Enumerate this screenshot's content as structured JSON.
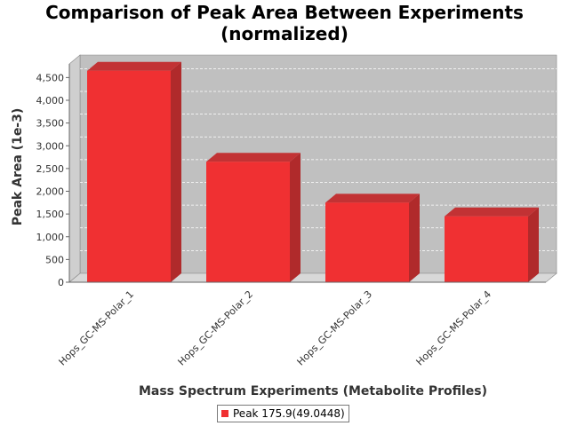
{
  "chart_data": {
    "type": "bar",
    "title": "Comparison of Peak Area Between Experiments\n(normalized)",
    "xlabel": "Mass Spectrum Experiments (Metabolite Profiles)",
    "ylabel": "Peak Area (1e-3)",
    "categories": [
      "Hops_GC-MS-Polar_1",
      "Hops_GC-MS-Polar_2",
      "Hops_GC-MS-Polar_3",
      "Hops_GC-MS-Polar_4"
    ],
    "series": [
      {
        "name": "Peak 175.9(49.0448)",
        "values": [
          4650,
          2650,
          1750,
          1450
        ],
        "color": "#f03032"
      }
    ],
    "ylim": [
      0,
      4800
    ],
    "yticks": [
      0,
      500,
      1000,
      1500,
      2000,
      2500,
      3000,
      3500,
      4000,
      4500
    ],
    "ytick_labels": [
      "0",
      "500",
      "1,000",
      "1,500",
      "2,000",
      "2,500",
      "3,000",
      "3,500",
      "4,000",
      "4,500"
    ],
    "grid": true,
    "legend_position": "bottom",
    "style": "3d",
    "plot_background": "#c0c0c0"
  }
}
